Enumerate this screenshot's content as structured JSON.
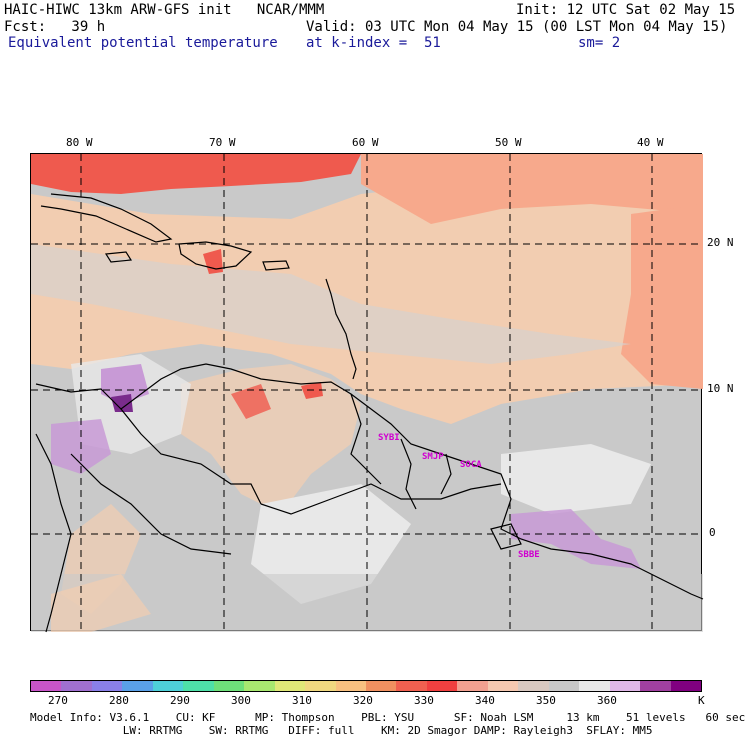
{
  "header": {
    "title": "HAIC-HIWC 13km ARW-GFS init   NCAR/MMM",
    "init": "Init: 12 UTC Sat 02 May 15",
    "fcst": "Fcst:   39 h",
    "valid": "Valid: 03 UTC Mon 04 May 15 (00 LST Mon 04 May 15)",
    "field": "Equivalent potential temperature",
    "level": "at k-index =  51",
    "smoothing": "sm= 2"
  },
  "map": {
    "lon_labels": [
      "80 W",
      "70 W",
      "60 W",
      "50 W",
      "40 W"
    ],
    "lat_labels": [
      "20 N",
      "10 N",
      "0"
    ],
    "stations": [
      "SYBI",
      "SMJP",
      "SOCA",
      "SBBE"
    ],
    "colors": {
      "background": "#c9c9c9",
      "lightgray": "#e8e8e8",
      "tan": "#f2cdb1",
      "salmon": "#f7a98c",
      "red": "#ef5a4e",
      "purple": "#c89ad6",
      "darkpurple": "#7a2c8c"
    }
  },
  "colorbar": {
    "colors": [
      "#c855c8",
      "#a070d0",
      "#8a80e8",
      "#5aa0e8",
      "#4ed0d8",
      "#4ee0a8",
      "#6ee07a",
      "#a8e870",
      "#e0e878",
      "#f0d880",
      "#f8c080",
      "#f09060",
      "#f06050",
      "#f04040",
      "#f2a090",
      "#f5c8b0",
      "#d8c8c0",
      "#c8c8c8",
      "#e8e8e8",
      "#e0b8e8",
      "#a040a0",
      "#800080"
    ],
    "labels": [
      "270",
      "280",
      "290",
      "300",
      "310",
      "320",
      "330",
      "340",
      "350",
      "360"
    ],
    "unit": "K"
  },
  "footer": {
    "line1": "Model Info: V3.6.1    CU: KF      MP: Thompson    PBL: YSU      SF: Noah LSM     13 km    51 levels   60 sec",
    "line2": "              LW: RRTMG    SW: RRTMG   DIFF: full    KM: 2D Smagor DAMP: Rayleigh3  SFLAY: MM5"
  }
}
